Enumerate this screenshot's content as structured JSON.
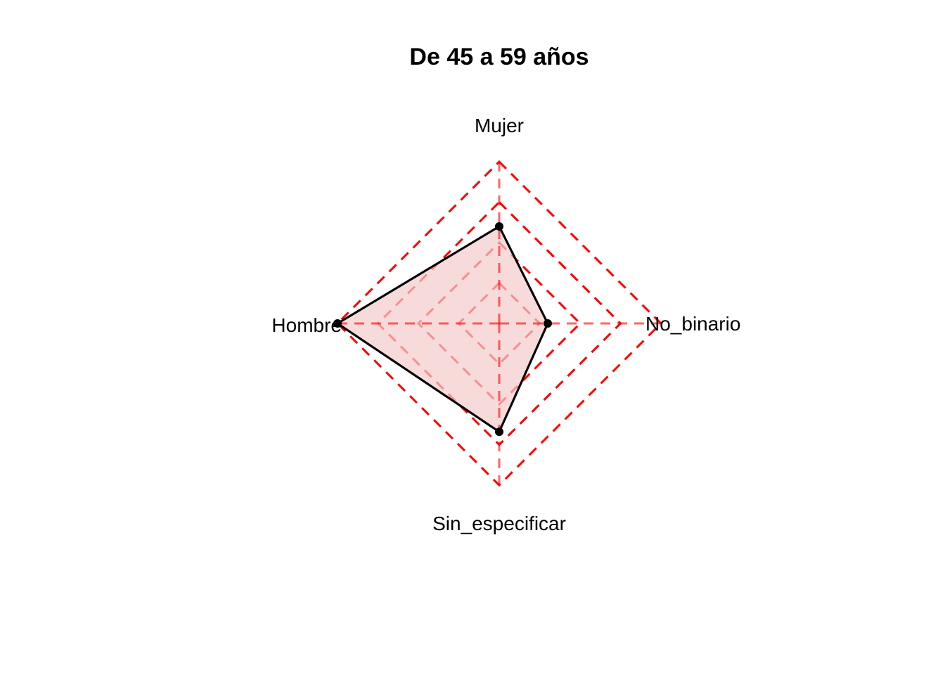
{
  "chart_data": {
    "type": "radar",
    "title": "De 45 a 59 años",
    "axes": [
      "Mujer",
      "No_binario",
      "Sin_especificar",
      "Hombre"
    ],
    "series": [
      {
        "values": [
          0.6,
          0.3,
          0.67,
          1.0
        ]
      }
    ],
    "range": [
      0,
      1
    ],
    "grid_levels": 4,
    "grid_style": "dashed",
    "colors": {
      "grid": "#ff0000",
      "fill": "#f4cccc",
      "line": "#000000",
      "points": "#000000"
    }
  }
}
